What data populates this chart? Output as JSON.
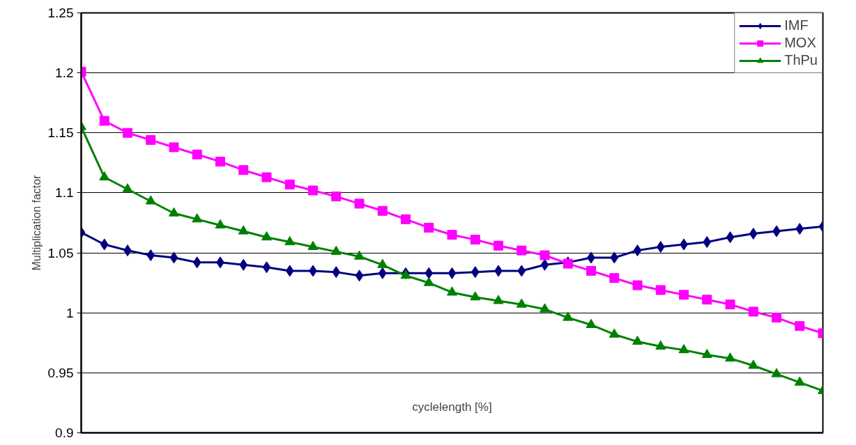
{
  "chart_data": {
    "type": "line",
    "xlabel": "cyclelength [%]",
    "ylabel": "Multiplication factor",
    "categories": [
      null,
      null,
      null,
      null,
      null,
      null,
      null,
      null,
      null,
      null,
      null,
      null,
      null,
      null,
      null,
      null,
      null,
      null,
      null,
      null,
      null,
      null,
      null,
      null,
      null,
      null,
      null,
      null,
      null,
      null,
      null,
      null,
      null
    ],
    "series": [
      {
        "name": "IMF",
        "color": "#000080",
        "marker": "diamond",
        "values": [
          1.067,
          1.057,
          1.052,
          1.048,
          1.046,
          1.042,
          1.042,
          1.04,
          1.038,
          1.035,
          1.035,
          1.034,
          1.031,
          1.033,
          1.033,
          1.033,
          1.033,
          1.034,
          1.035,
          1.035,
          1.04,
          1.042,
          1.046,
          1.046,
          1.052,
          1.055,
          1.057,
          1.059,
          1.063,
          1.066,
          1.068,
          1.07,
          1.072
        ]
      },
      {
        "name": "MOX",
        "color": "#ff00ff",
        "marker": "square",
        "values": [
          1.201,
          1.16,
          1.15,
          1.144,
          1.138,
          1.132,
          1.126,
          1.119,
          1.113,
          1.107,
          1.102,
          1.097,
          1.091,
          1.085,
          1.078,
          1.071,
          1.065,
          1.061,
          1.056,
          1.052,
          1.048,
          1.041,
          1.035,
          1.029,
          1.023,
          1.019,
          1.015,
          1.011,
          1.007,
          1.001,
          0.996,
          0.989,
          0.983
        ]
      },
      {
        "name": "ThPu",
        "color": "#008000",
        "marker": "triangle",
        "values": [
          1.155,
          1.113,
          1.103,
          1.093,
          1.083,
          1.078,
          1.073,
          1.068,
          1.063,
          1.059,
          1.055,
          1.051,
          1.047,
          1.04,
          1.031,
          1.025,
          1.017,
          1.013,
          1.01,
          1.007,
          1.003,
          0.996,
          0.99,
          0.982,
          0.976,
          0.972,
          0.969,
          0.965,
          0.962,
          0.956,
          0.949,
          0.942,
          0.935
        ]
      }
    ],
    "ylim": [
      0.9,
      1.25
    ],
    "yticks": [
      {
        "value": 0.9,
        "label": "0.9"
      },
      {
        "value": 0.95,
        "label": "0.95"
      },
      {
        "value": 1,
        "label": "1"
      },
      {
        "value": 1.05,
        "label": "1.05"
      },
      {
        "value": 1.1,
        "label": "1.1"
      },
      {
        "value": 1.15,
        "label": "1.15"
      },
      {
        "value": 1.2,
        "label": "1.2"
      },
      {
        "value": 1.25,
        "label": "1.25"
      }
    ],
    "grid": "y",
    "legend": "top right",
    "tick_labels": "y",
    "line_style": "solid"
  }
}
